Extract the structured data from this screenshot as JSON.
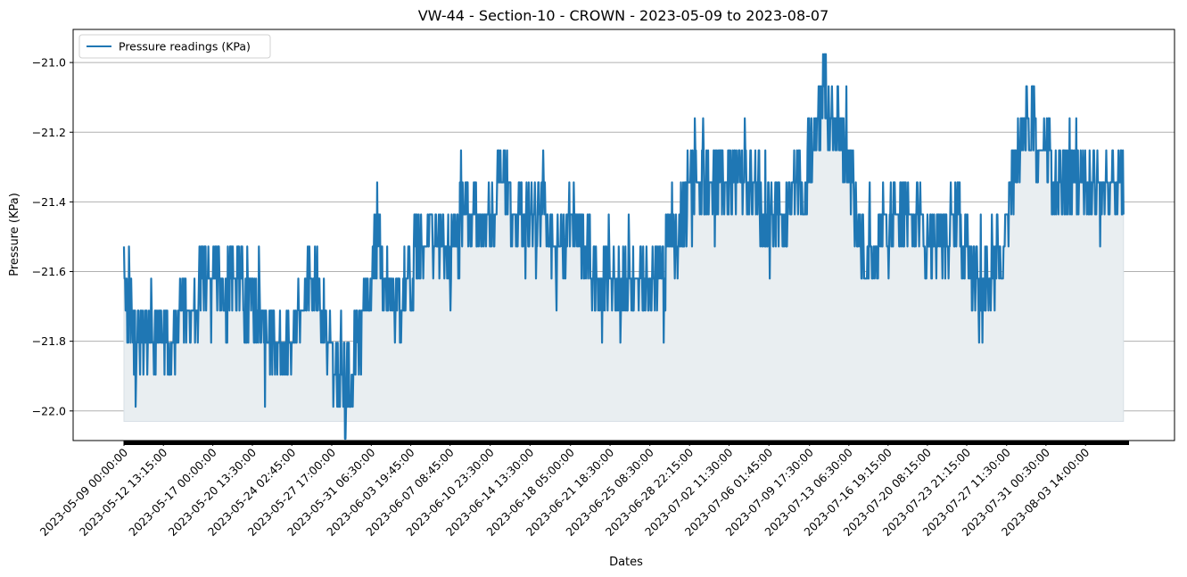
{
  "chart_data": {
    "type": "line",
    "title": "VW-44 - Section-10 - CROWN - 2023-05-09 to 2023-08-07",
    "xlabel": "Dates",
    "ylabel": "Pressure (KPa)",
    "x_range": [
      "2023-05-09 00:00:00",
      "2023-08-07 12:00:00"
    ],
    "ylim": [
      -22.085,
      -20.905
    ],
    "y_ticks": [
      -22.0,
      -21.8,
      -21.6,
      -21.4,
      -21.2,
      -21.0
    ],
    "y_tick_labels": [
      "−22.0",
      "−21.8",
      "−21.6",
      "−21.4",
      "−21.2",
      "−21.0"
    ],
    "x_tick_labels": [
      "2023-05-09 00:00:00",
      "2023-05-12 13:15:00",
      "2023-05-17 00:00:00",
      "2023-05-20 13:30:00",
      "2023-05-24 02:45:00",
      "2023-05-27 17:00:00",
      "2023-05-31 06:30:00",
      "2023-06-03 19:45:00",
      "2023-06-07 08:45:00",
      "2023-06-10 23:30:00",
      "2023-06-14 13:30:00",
      "2023-06-18 05:00:00",
      "2023-06-21 18:30:00",
      "2023-06-25 08:30:00",
      "2023-06-28 22:15:00",
      "2023-07-02 11:30:00",
      "2023-07-06 01:45:00",
      "2023-07-09 17:30:00",
      "2023-07-13 06:30:00",
      "2023-07-16 19:15:00",
      "2023-07-20 08:15:00",
      "2023-07-23 21:15:00",
      "2023-07-27 11:30:00",
      "2023-07-31 00:30:00",
      "2023-08-03 14:00:00"
    ],
    "grid": "horizontal",
    "legend_position": "top-left",
    "fill_baseline": -22.03,
    "colors": {
      "line": "#1f77b4",
      "fill": "#e9eef1",
      "grid": "#b0b0b0"
    },
    "series": [
      {
        "name": "Pressure readings (KPa)",
        "x": [
          "2023-05-09",
          "2023-05-10",
          "2023-05-11",
          "2023-05-12",
          "2023-05-13",
          "2023-05-14",
          "2023-05-15",
          "2023-05-16",
          "2023-05-17",
          "2023-05-18",
          "2023-05-19",
          "2023-05-20",
          "2023-05-21",
          "2023-05-22",
          "2023-05-23",
          "2023-05-24",
          "2023-05-25",
          "2023-05-26",
          "2023-05-27",
          "2023-05-28",
          "2023-05-29",
          "2023-05-30",
          "2023-05-31",
          "2023-06-01",
          "2023-06-02",
          "2023-06-03",
          "2023-06-04",
          "2023-06-05",
          "2023-06-06",
          "2023-06-07",
          "2023-06-08",
          "2023-06-09",
          "2023-06-10",
          "2023-06-11",
          "2023-06-12",
          "2023-06-13",
          "2023-06-14",
          "2023-06-15",
          "2023-06-16",
          "2023-06-17",
          "2023-06-18",
          "2023-06-19",
          "2023-06-20",
          "2023-06-21",
          "2023-06-22",
          "2023-06-23",
          "2023-06-24",
          "2023-06-25",
          "2023-06-26",
          "2023-06-27",
          "2023-06-28",
          "2023-06-29",
          "2023-06-30",
          "2023-07-01",
          "2023-07-02",
          "2023-07-03",
          "2023-07-04",
          "2023-07-05",
          "2023-07-06",
          "2023-07-07",
          "2023-07-08",
          "2023-07-09",
          "2023-07-10",
          "2023-07-11",
          "2023-07-12",
          "2023-07-13",
          "2023-07-14",
          "2023-07-15",
          "2023-07-16",
          "2023-07-17",
          "2023-07-18",
          "2023-07-19",
          "2023-07-20",
          "2023-07-21",
          "2023-07-22",
          "2023-07-23",
          "2023-07-24",
          "2023-07-25",
          "2023-07-26",
          "2023-07-27",
          "2023-07-28",
          "2023-07-29",
          "2023-07-30",
          "2023-07-31",
          "2023-08-01",
          "2023-08-02",
          "2023-08-03",
          "2023-08-04",
          "2023-08-05",
          "2023-08-06",
          "2023-08-07"
        ],
        "y": [
          -21.62,
          -21.8,
          -21.8,
          -21.78,
          -21.8,
          -21.75,
          -21.68,
          -21.66,
          -21.65,
          -21.66,
          -21.62,
          -21.68,
          -21.74,
          -21.78,
          -21.79,
          -21.8,
          -21.7,
          -21.58,
          -21.72,
          -21.88,
          -21.95,
          -21.8,
          -21.6,
          -21.55,
          -21.7,
          -21.68,
          -21.58,
          -21.52,
          -21.55,
          -21.52,
          -21.5,
          -21.42,
          -21.45,
          -21.45,
          -21.35,
          -21.4,
          -21.42,
          -21.4,
          -21.48,
          -21.52,
          -21.48,
          -21.46,
          -21.58,
          -21.62,
          -21.6,
          -21.58,
          -21.58,
          -21.62,
          -21.65,
          -21.55,
          -21.5,
          -21.35,
          -21.3,
          -21.35,
          -21.38,
          -21.35,
          -21.35,
          -21.38,
          -21.42,
          -21.42,
          -21.4,
          -21.35,
          -21.25,
          -21.1,
          -21.15,
          -21.25,
          -21.45,
          -21.55,
          -21.48,
          -21.45,
          -21.42,
          -21.4,
          -21.48,
          -21.5,
          -21.5,
          -21.45,
          -21.55,
          -21.65,
          -21.6,
          -21.55,
          -21.35,
          -21.18,
          -21.2,
          -21.25,
          -21.35,
          -21.38,
          -21.38,
          -21.35,
          -21.32,
          -21.32,
          -21.35
        ]
      }
    ]
  }
}
